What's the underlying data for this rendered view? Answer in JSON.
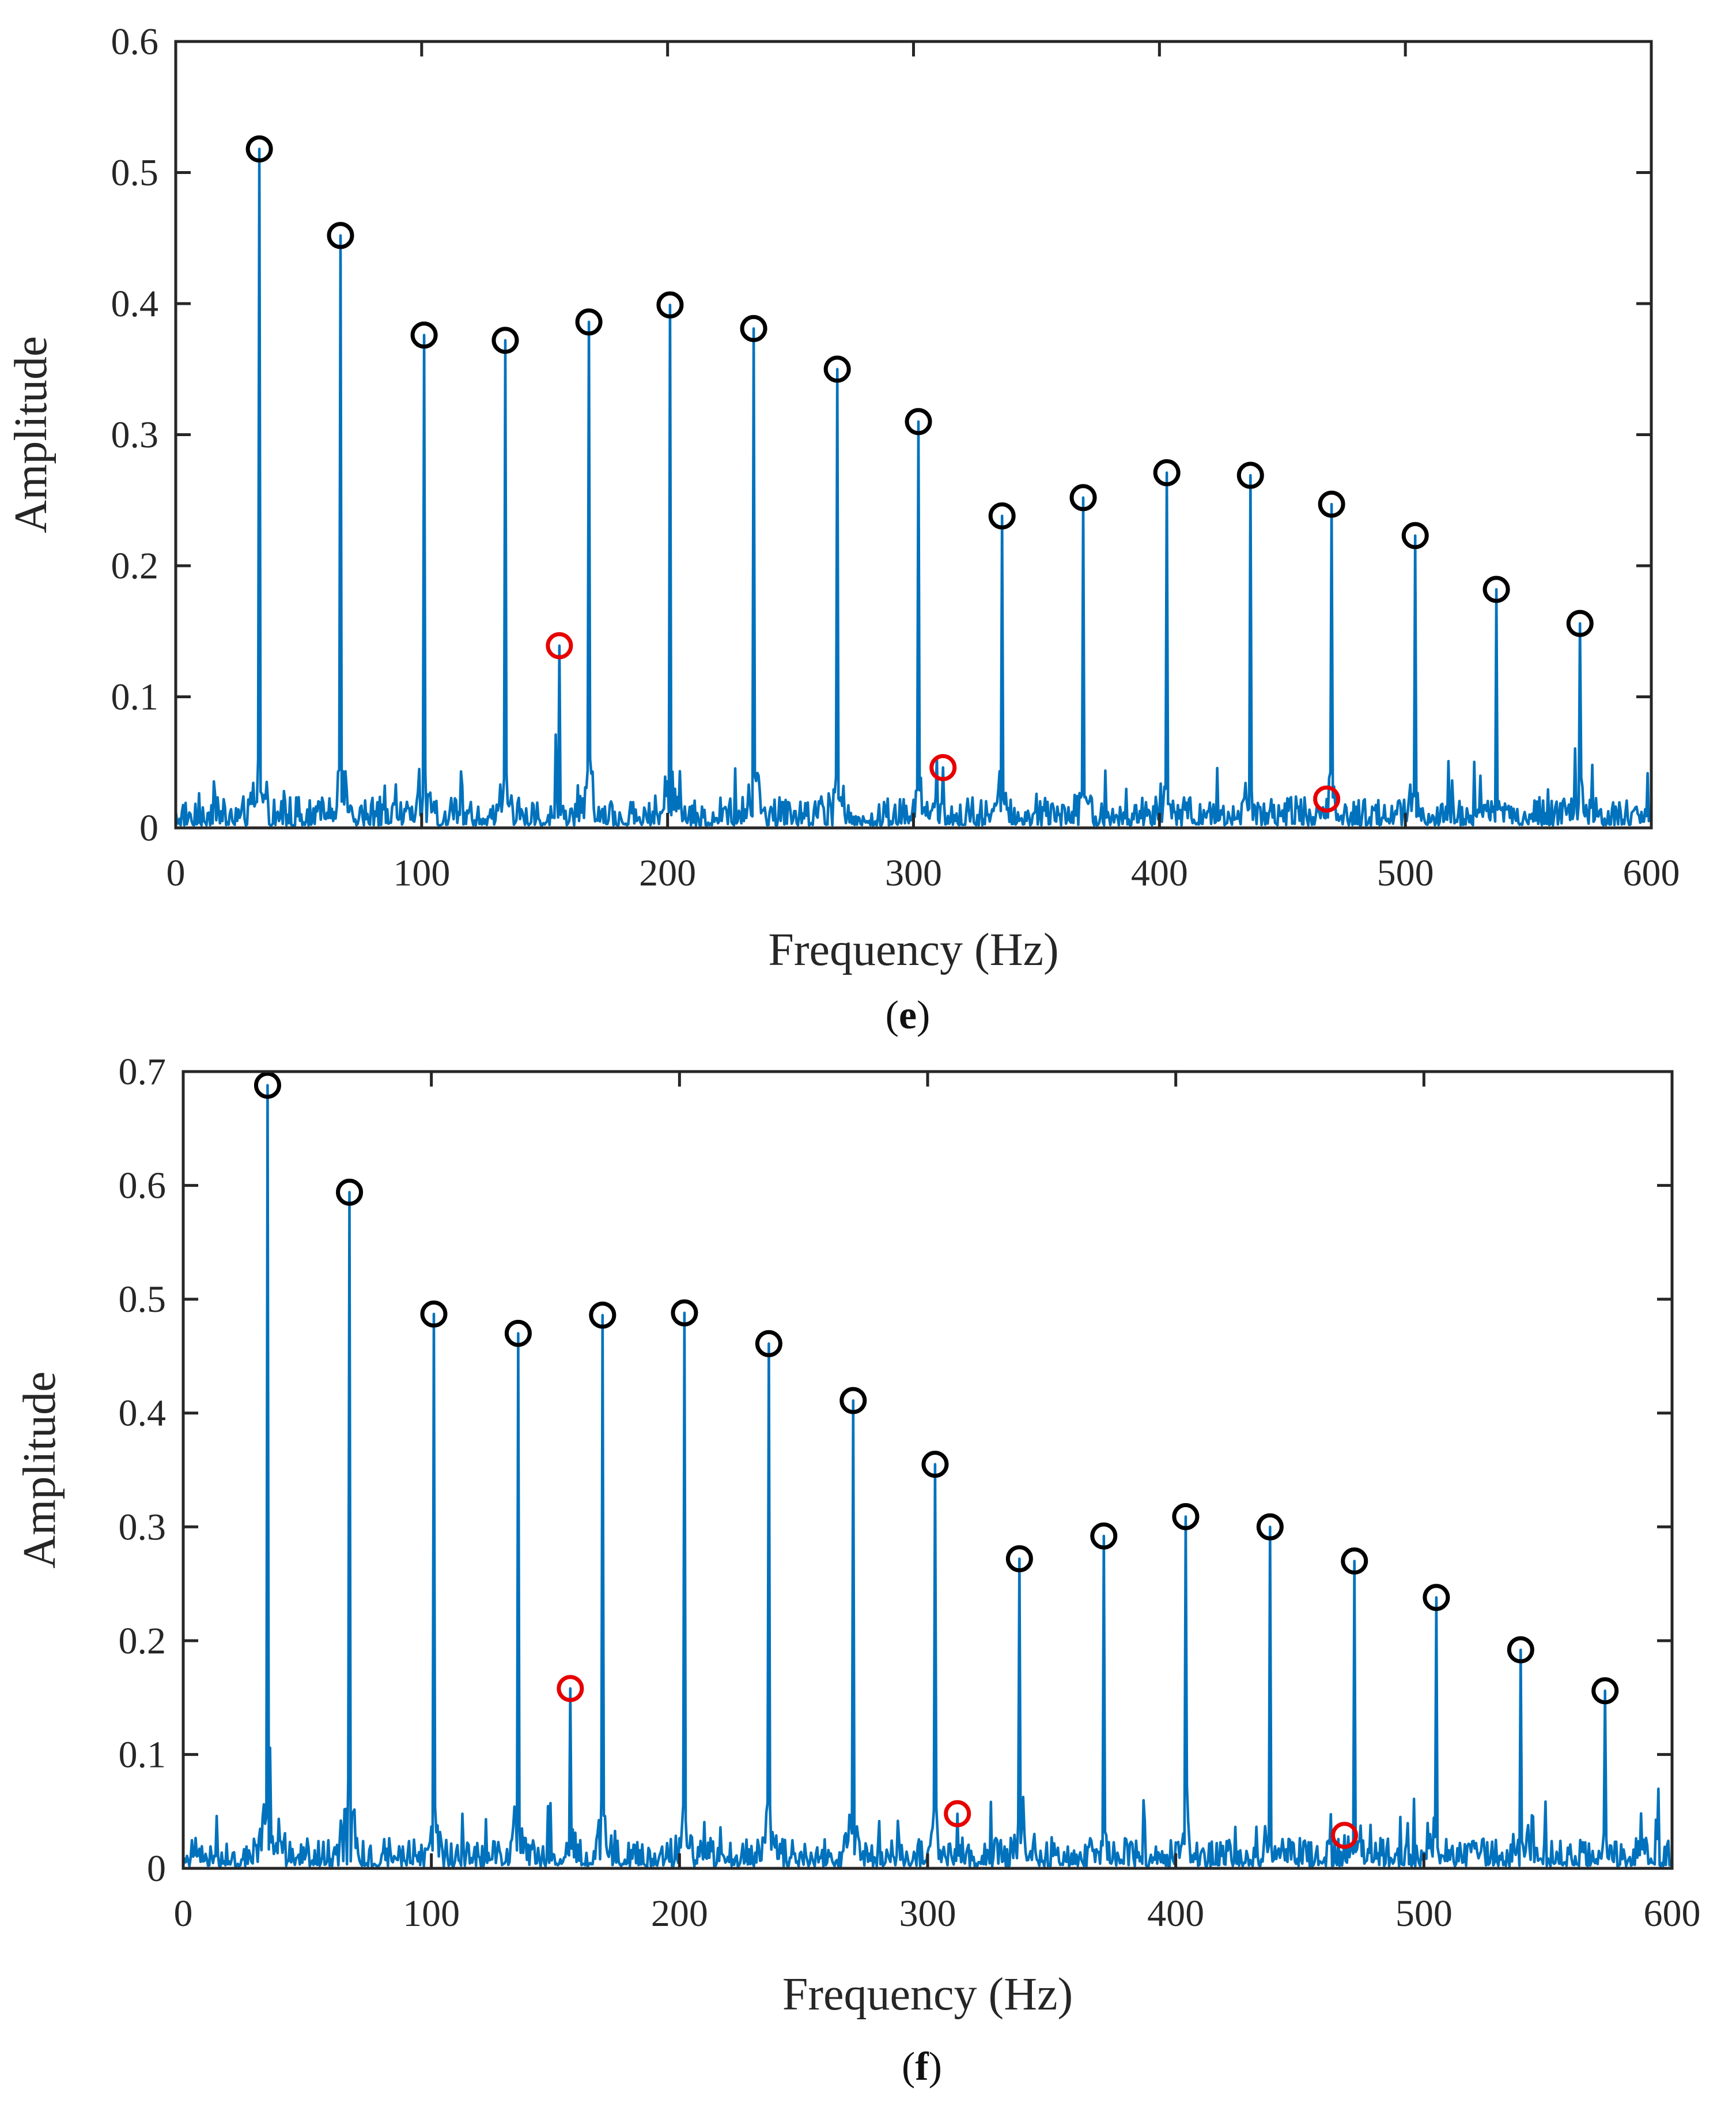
{
  "colors": {
    "spectrum": "#0072BD",
    "harmonic_marker": "#000000",
    "fault_marker": "#E60000",
    "axis": "#262626"
  },
  "chart_data": [
    {
      "type": "line",
      "panel_label": "(e)",
      "panel_letter": "e",
      "xlabel": "Frequency (Hz)",
      "ylabel": "Amplitude",
      "xlim": [
        0,
        600
      ],
      "ylim": [
        0,
        0.6
      ],
      "x_ticks": [
        0,
        100,
        200,
        300,
        400,
        500,
        600
      ],
      "x_tick_labels": [
        "0",
        "100",
        "200",
        "300",
        "400",
        "500",
        "600"
      ],
      "y_ticks": [
        0,
        0.1,
        0.2,
        0.3,
        0.4,
        0.5,
        0.6
      ],
      "y_tick_labels": [
        "0",
        "0.1",
        "0.2",
        "0.3",
        "0.4",
        "0.5",
        "0.6"
      ],
      "grid": false,
      "peaks": {
        "x": [
          34,
          67,
          101,
          134,
          168,
          201,
          235,
          269,
          302,
          336,
          369,
          403,
          437,
          470,
          504,
          537,
          571
        ],
        "y": [
          0.518,
          0.452,
          0.376,
          0.372,
          0.386,
          0.399,
          0.381,
          0.35,
          0.31,
          0.238,
          0.252,
          0.271,
          0.269,
          0.247,
          0.223,
          0.182,
          0.156
        ]
      },
      "fault_peaks": {
        "x": [
          156,
          312,
          468
        ],
        "y": [
          0.139,
          0.046,
          0.022
        ]
      },
      "noise_floor": 0.04
    },
    {
      "type": "line",
      "panel_label": "(f)",
      "panel_letter": "f",
      "xlabel": "Frequency (Hz)",
      "ylabel": "Amplitude",
      "xlim": [
        0,
        600
      ],
      "ylim": [
        0,
        0.7
      ],
      "x_ticks": [
        0,
        100,
        200,
        300,
        400,
        500,
        600
      ],
      "x_tick_labels": [
        "0",
        "100",
        "200",
        "300",
        "400",
        "500",
        "600"
      ],
      "y_ticks": [
        0,
        0.1,
        0.2,
        0.3,
        0.4,
        0.5,
        0.6,
        0.7
      ],
      "y_tick_labels": [
        "0",
        "0.1",
        "0.2",
        "0.3",
        "0.4",
        "0.5",
        "0.6",
        "0.7"
      ],
      "grid": false,
      "peaks": {
        "x": [
          34,
          67,
          101,
          135,
          169,
          202,
          236,
          270,
          303,
          337,
          371,
          404,
          438,
          472,
          505,
          539,
          573
        ],
        "y": [
          0.688,
          0.594,
          0.487,
          0.47,
          0.486,
          0.488,
          0.461,
          0.411,
          0.355,
          0.272,
          0.292,
          0.309,
          0.3,
          0.27,
          0.238,
          0.192,
          0.156
        ]
      },
      "fault_peaks": {
        "x": [
          156,
          312,
          468
        ],
        "y": [
          0.158,
          0.048,
          0.029
        ]
      },
      "noise_floor": 0.045
    }
  ]
}
